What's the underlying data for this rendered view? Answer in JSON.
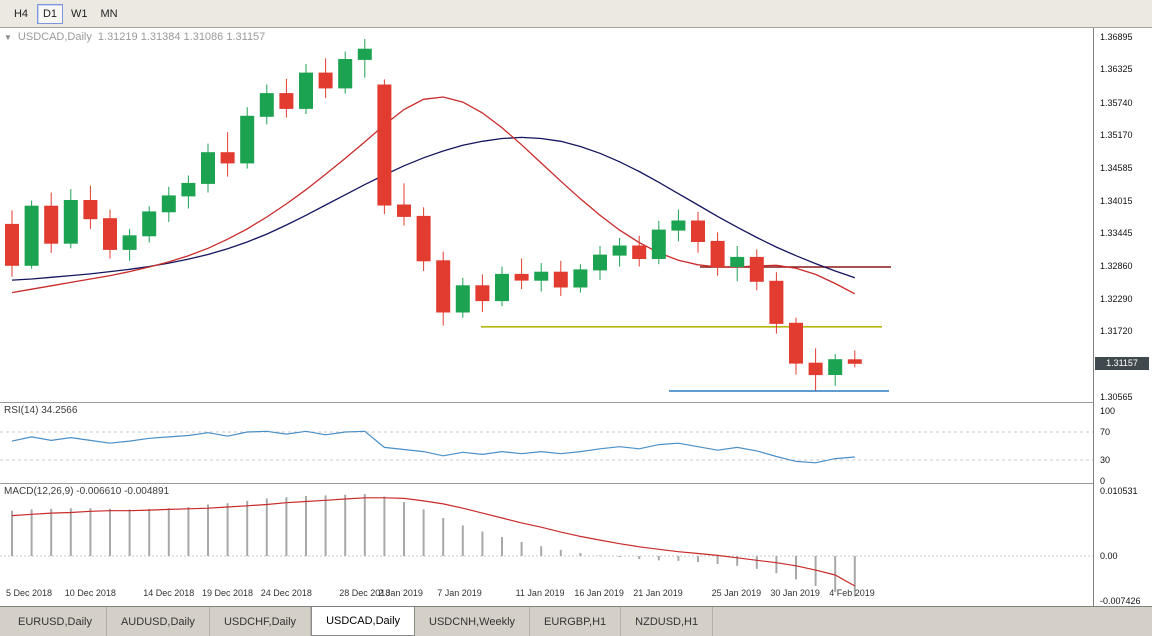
{
  "colors": {
    "up": "#1ca352",
    "down": "#e23b2f",
    "ma_fast": "#c92a2a",
    "ma_slow": "#15155f",
    "rsi_line": "#4a8fc7",
    "macd_hist": "#a8a8a8",
    "macd_signal": "#c92a2a",
    "price_tag_bg": "#40494e",
    "price_tag_text": "#ffffff"
  },
  "toolbar": {
    "buttons": [
      {
        "label": "H4",
        "active": false
      },
      {
        "label": "D1",
        "active": true
      },
      {
        "label": "W1",
        "active": false
      },
      {
        "label": "MN",
        "active": false
      }
    ]
  },
  "header": {
    "dropdown_icon": "▼",
    "title": "USDCAD,Daily",
    "ohlc": "1.31219 1.31384 1.31086 1.31157"
  },
  "chart_data": {
    "type": "candlestick",
    "symbol": "USDCAD",
    "timeframe": "Daily",
    "current_price": "1.31157",
    "y_axis_labels": [
      "1.36895",
      "1.36325",
      "1.35740",
      "1.35170",
      "1.34585",
      "1.34015",
      "1.33445",
      "1.32860",
      "1.32290",
      "1.31720",
      "1.30565"
    ],
    "x_axis_labels": [
      {
        "i": 0,
        "label": "5 Dec 2018"
      },
      {
        "i": 3,
        "label": "10 Dec 2018"
      },
      {
        "i": 7,
        "label": "14 Dec 2018"
      },
      {
        "i": 10,
        "label": "19 Dec 2018"
      },
      {
        "i": 13,
        "label": "24 Dec 2018"
      },
      {
        "i": 17,
        "label": "28 Dec 2018"
      },
      {
        "i": 19,
        "label": "2 Jan 2019"
      },
      {
        "i": 22,
        "label": "7 Jan 2019"
      },
      {
        "i": 26,
        "label": "11 Jan 2019"
      },
      {
        "i": 29,
        "label": "16 Jan 2019"
      },
      {
        "i": 32,
        "label": "21 Jan 2019"
      },
      {
        "i": 36,
        "label": "25 Jan 2019"
      },
      {
        "i": 39,
        "label": "30 Jan 2019"
      },
      {
        "i": 42,
        "label": "4 Feb 2019"
      }
    ],
    "candles": [
      [
        1.336,
        1.3385,
        1.3268,
        1.3288
      ],
      [
        1.3288,
        1.3402,
        1.3282,
        1.3392
      ],
      [
        1.3392,
        1.3416,
        1.331,
        1.3327
      ],
      [
        1.3327,
        1.3422,
        1.3318,
        1.3402
      ],
      [
        1.3402,
        1.3428,
        1.3352,
        1.337
      ],
      [
        1.337,
        1.3386,
        1.33,
        1.3316
      ],
      [
        1.3316,
        1.3352,
        1.3296,
        1.334
      ],
      [
        1.334,
        1.3392,
        1.3328,
        1.3382
      ],
      [
        1.3382,
        1.3426,
        1.3364,
        1.341
      ],
      [
        1.341,
        1.3446,
        1.3388,
        1.3432
      ],
      [
        1.3432,
        1.3502,
        1.3416,
        1.3486
      ],
      [
        1.3486,
        1.3522,
        1.3444,
        1.3468
      ],
      [
        1.3468,
        1.3566,
        1.3458,
        1.355
      ],
      [
        1.355,
        1.3606,
        1.3536,
        1.359
      ],
      [
        1.359,
        1.3616,
        1.3548,
        1.3564
      ],
      [
        1.3564,
        1.3642,
        1.3554,
        1.3626
      ],
      [
        1.3626,
        1.3652,
        1.3582,
        1.36
      ],
      [
        1.36,
        1.3664,
        1.359,
        1.365
      ],
      [
        1.365,
        1.3686,
        1.3618,
        1.3668
      ],
      [
        1.3605,
        1.3615,
        1.3378,
        1.3394
      ],
      [
        1.3394,
        1.3432,
        1.3358,
        1.3374
      ],
      [
        1.3374,
        1.339,
        1.3278,
        1.3296
      ],
      [
        1.3296,
        1.3312,
        1.3182,
        1.3206
      ],
      [
        1.3206,
        1.3266,
        1.3196,
        1.3252
      ],
      [
        1.3252,
        1.3272,
        1.3206,
        1.3226
      ],
      [
        1.3226,
        1.3286,
        1.3216,
        1.3272
      ],
      [
        1.3272,
        1.33,
        1.3246,
        1.3262
      ],
      [
        1.3262,
        1.3292,
        1.3242,
        1.3276
      ],
      [
        1.3276,
        1.3296,
        1.3234,
        1.325
      ],
      [
        1.325,
        1.329,
        1.324,
        1.328
      ],
      [
        1.328,
        1.3322,
        1.3262,
        1.3306
      ],
      [
        1.3306,
        1.3336,
        1.3286,
        1.3322
      ],
      [
        1.3322,
        1.334,
        1.3286,
        1.33
      ],
      [
        1.33,
        1.3366,
        1.329,
        1.335
      ],
      [
        1.335,
        1.3386,
        1.333,
        1.3366
      ],
      [
        1.3366,
        1.3382,
        1.331,
        1.333
      ],
      [
        1.333,
        1.3346,
        1.327,
        1.3286
      ],
      [
        1.3286,
        1.3322,
        1.326,
        1.3302
      ],
      [
        1.3302,
        1.3316,
        1.3244,
        1.326
      ],
      [
        1.326,
        1.3276,
        1.3168,
        1.3186
      ],
      [
        1.3186,
        1.3196,
        1.3096,
        1.3116
      ],
      [
        1.3116,
        1.3142,
        1.3068,
        1.3096
      ],
      [
        1.3096,
        1.3132,
        1.3076,
        1.3122
      ],
      [
        1.31219,
        1.31384,
        1.31086,
        1.31157
      ]
    ],
    "ma_fast_red": [
      1.324,
      1.3246,
      1.3252,
      1.3258,
      1.3264,
      1.327,
      1.3277,
      1.3285,
      1.3294,
      1.3305,
      1.3318,
      1.3334,
      1.3352,
      1.3373,
      1.3396,
      1.3421,
      1.3448,
      1.3476,
      1.3505,
      1.3535,
      1.3562,
      1.358,
      1.3584,
      1.3575,
      1.3556,
      1.353,
      1.35,
      1.3468,
      1.3436,
      1.3405,
      1.3376,
      1.335,
      1.3328,
      1.331,
      1.3297,
      1.3289,
      1.3285,
      1.3285,
      1.3287,
      1.3288,
      1.3283,
      1.3272,
      1.3256,
      1.3238
    ],
    "ma_slow_navy": [
      1.3262,
      1.3264,
      1.3267,
      1.327,
      1.3273,
      1.3277,
      1.3281,
      1.3286,
      1.3292,
      1.3299,
      1.3307,
      1.3317,
      1.3329,
      1.3343,
      1.3359,
      1.3376,
      1.3394,
      1.3412,
      1.343,
      1.3447,
      1.3463,
      1.3477,
      1.3489,
      1.3499,
      1.3506,
      1.3511,
      1.3513,
      1.3511,
      1.3506,
      1.3497,
      1.3485,
      1.347,
      1.3453,
      1.3434,
      1.3414,
      1.3394,
      1.3374,
      1.3355,
      1.3337,
      1.332,
      1.3305,
      1.3291,
      1.3278,
      1.3266
    ],
    "levels": [
      {
        "name": "resistance-darkred",
        "price": 1.3285,
        "color": "#8b1a1a",
        "x_from": 0.64,
        "x_to": 0.815
      },
      {
        "name": "support-yellow",
        "price": 1.318,
        "color": "#b3b80e",
        "x_from": 0.44,
        "x_to": 0.807
      },
      {
        "name": "support-blue",
        "price": 1.3067,
        "color": "#2b7cc4",
        "x_from": 0.612,
        "x_to": 0.813
      }
    ],
    "rsi": {
      "label": "RSI(14) 34.2566",
      "scale_labels": [
        "100",
        "70",
        "30",
        "0"
      ],
      "levels": [
        70,
        30
      ],
      "values": [
        57,
        63,
        58,
        62,
        58,
        54,
        57,
        61,
        63,
        65,
        69,
        64,
        70,
        71,
        67,
        71,
        66,
        70,
        71,
        48,
        45,
        42,
        36,
        41,
        38,
        42,
        39,
        42,
        39,
        42,
        46,
        49,
        46,
        52,
        54,
        49,
        44,
        48,
        43,
        35,
        28,
        26,
        32,
        34.2566
      ]
    },
    "macd": {
      "label": "MACD(12,26,9) -0.006610 -0.004891",
      "scale_labels": [
        "0.010531",
        "0.00",
        "-0.007426"
      ],
      "values": [
        0.0074,
        0.0076,
        0.0077,
        0.0078,
        0.0078,
        0.0077,
        0.0076,
        0.0077,
        0.0078,
        0.008,
        0.0084,
        0.0086,
        0.009,
        0.0094,
        0.0096,
        0.0098,
        0.0099,
        0.01,
        0.0101,
        0.0097,
        0.0088,
        0.0076,
        0.0062,
        0.005,
        0.004,
        0.0031,
        0.0023,
        0.0016,
        0.001,
        0.0005,
        0.0001,
        -0.0002,
        -0.0005,
        -0.0007,
        -0.0008,
        -0.001,
        -0.0013,
        -0.0016,
        -0.0021,
        -0.0028,
        -0.0038,
        -0.0049,
        -0.0059,
        -0.00661
      ],
      "signal": [
        0.0066,
        0.0068,
        0.007,
        0.0071,
        0.0073,
        0.0074,
        0.0074,
        0.0075,
        0.0076,
        0.0077,
        0.0078,
        0.008,
        0.0082,
        0.0084,
        0.0087,
        0.0089,
        0.0091,
        0.0093,
        0.0095,
        0.0095,
        0.0094,
        0.009,
        0.0085,
        0.0078,
        0.007,
        0.0062,
        0.0054,
        0.0047,
        0.0039,
        0.0032,
        0.0026,
        0.002,
        0.0015,
        0.0011,
        0.0007,
        0.0004,
        0.0001,
        -0.0003,
        -0.0007,
        -0.0011,
        -0.0016,
        -0.0023,
        -0.0031,
        -0.004891
      ]
    }
  },
  "tabbar": {
    "tabs": [
      {
        "label": "EURUSD,Daily",
        "active": false
      },
      {
        "label": "AUDUSD,Daily",
        "active": false
      },
      {
        "label": "USDCHF,Daily",
        "active": false
      },
      {
        "label": "USDCAD,Daily",
        "active": true
      },
      {
        "label": "USDCNH,Weekly",
        "active": false
      },
      {
        "label": "EURGBP,H1",
        "active": false
      },
      {
        "label": "NZDUSD,H1",
        "active": false
      }
    ]
  }
}
